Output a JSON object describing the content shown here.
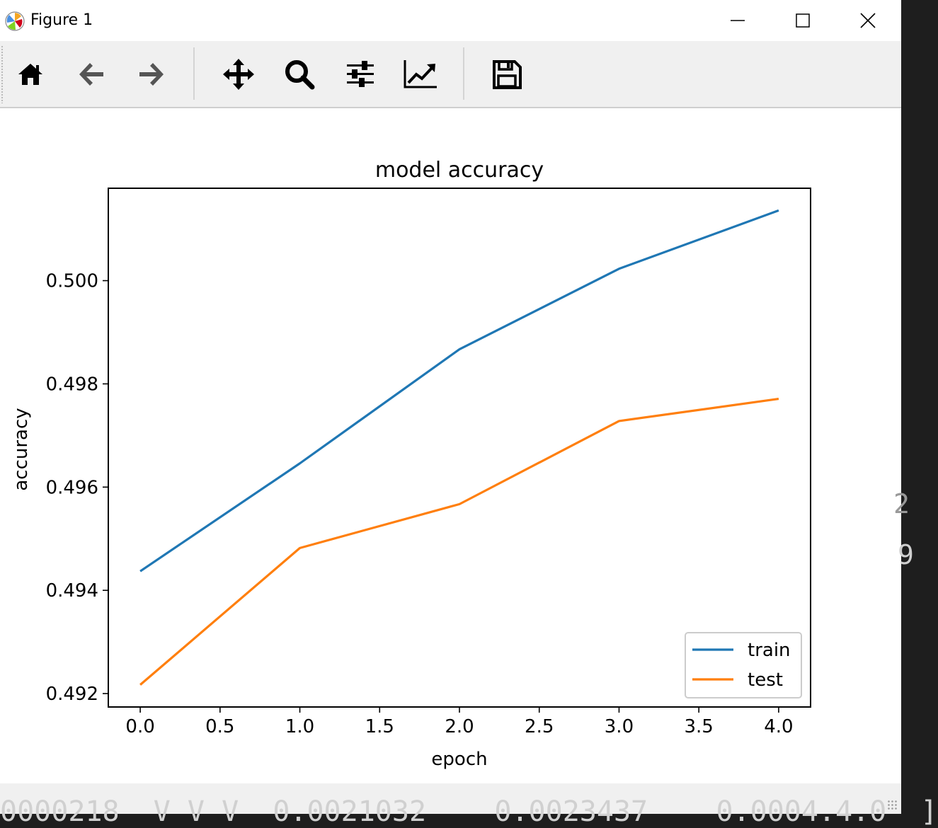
{
  "window": {
    "title": "Figure 1"
  },
  "window_controls": [
    "minimize",
    "maximize",
    "close"
  ],
  "toolbar": {
    "buttons": [
      {
        "name": "home",
        "icon": "home-icon"
      },
      {
        "name": "back",
        "icon": "arrow-left-icon"
      },
      {
        "name": "forward",
        "icon": "arrow-right-icon"
      },
      {
        "name": "pan",
        "icon": "move-icon"
      },
      {
        "name": "zoom",
        "icon": "magnifier-icon"
      },
      {
        "name": "configure-subplots",
        "icon": "sliders-icon"
      },
      {
        "name": "edit-axis",
        "icon": "line-chart-icon"
      },
      {
        "name": "save",
        "icon": "floppy-disk-icon"
      }
    ]
  },
  "chart_data": {
    "type": "line",
    "title": "model accuracy",
    "xlabel": "epoch",
    "ylabel": "accuracy",
    "x": [
      0,
      1,
      2,
      3,
      4
    ],
    "xlim": [
      -0.2,
      4.2
    ],
    "ylim": [
      0.49174,
      0.50179
    ],
    "xticks": [
      "0.0",
      "0.5",
      "1.0",
      "1.5",
      "2.0",
      "2.5",
      "3.0",
      "3.5",
      "4.0"
    ],
    "yticks": [
      "0.492",
      "0.494",
      "0.496",
      "0.498",
      "0.500"
    ],
    "grid": false,
    "legend_position": "lower right",
    "series": [
      {
        "name": "train",
        "color": "#1f77b4",
        "values": [
          0.49437,
          0.49646,
          0.49867,
          0.50023,
          0.50136
        ]
      },
      {
        "name": "test",
        "color": "#ff7f0e",
        "values": [
          0.49217,
          0.49482,
          0.49567,
          0.49728,
          0.49771
        ]
      }
    ]
  },
  "background_text": {
    "right_fragment_1": "2",
    "right_fragment_2": "9",
    "bottom_line": "0000218  V V V  0.0021032    0.0023437    0.0004.4.0  ]"
  }
}
